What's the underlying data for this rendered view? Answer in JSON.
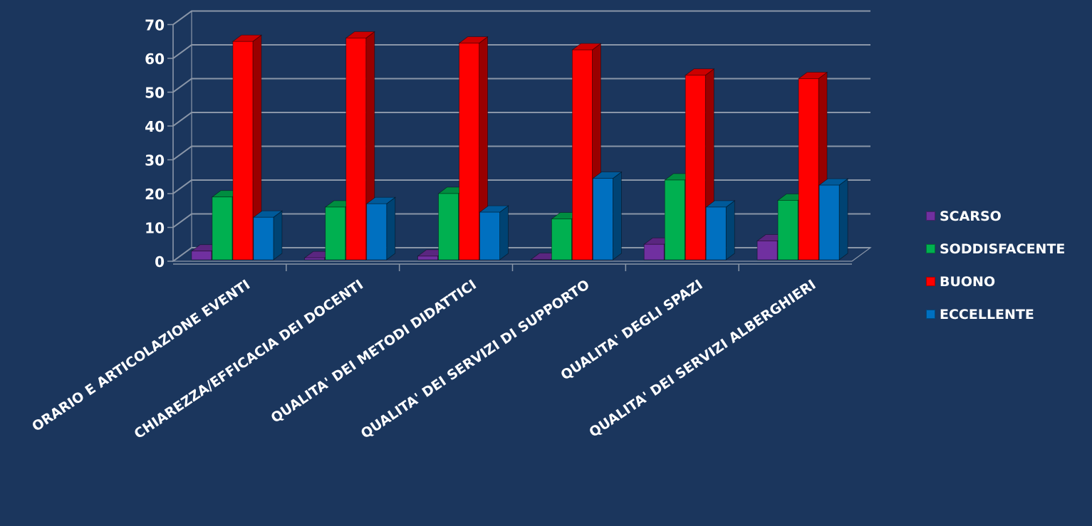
{
  "chart_data": {
    "type": "bar",
    "title": "",
    "xlabel": "",
    "ylabel": "",
    "ylim": [
      0,
      70
    ],
    "y_ticks": [
      0,
      10,
      20,
      30,
      40,
      50,
      60,
      70
    ],
    "grid": true,
    "legend_position": "right",
    "categories": [
      "ORARIO E ARTICOLAZIONE EVENTI",
      "CHIAREZZA/EFFICACIA DEI DOCENTI",
      "QUALITA' DEI METODI DIDATTICI",
      "QUALITA' DEI SERVIZI DI SUPPORTO",
      "QUALITA' DEGLI SPAZI",
      "QUALITA' DEI SERVIZI ALBERGHIERI"
    ],
    "series": [
      {
        "name": "SCARSO",
        "color": "#7030a0",
        "values": [
          3,
          1,
          1.5,
          0.5,
          5,
          6
        ]
      },
      {
        "name": "SODDISFACENTE",
        "color": "#00b050",
        "values": [
          19,
          16,
          20,
          12.5,
          24,
          18
        ]
      },
      {
        "name": "BUONO",
        "color": "#ff0000",
        "values": [
          65,
          66,
          64.5,
          62.5,
          55,
          54
        ]
      },
      {
        "name": "ECCELLENTE",
        "color": "#0070c0",
        "values": [
          13,
          17,
          14.5,
          24.5,
          16,
          22.5
        ]
      }
    ]
  }
}
